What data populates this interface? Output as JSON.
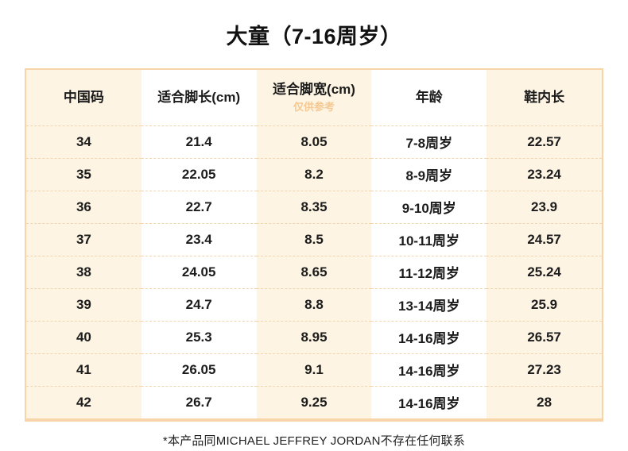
{
  "page": {
    "title": "大童（7-16周岁）",
    "footer_note": "*本产品同MICHAEL JEFFREY JORDAN不存在任何联系"
  },
  "table": {
    "columns": [
      {
        "label": "中国码",
        "sub": ""
      },
      {
        "label": "适合脚长(cm)",
        "sub": ""
      },
      {
        "label": "适合脚宽(cm)",
        "sub": "仅供参考"
      },
      {
        "label": "年龄",
        "sub": ""
      },
      {
        "label": "鞋内长",
        "sub": ""
      }
    ],
    "rows": [
      [
        "34",
        "21.4",
        "8.05",
        "7-8周岁",
        "22.57"
      ],
      [
        "35",
        "22.05",
        "8.2",
        "8-9周岁",
        "23.24"
      ],
      [
        "36",
        "22.7",
        "8.35",
        "9-10周岁",
        "23.9"
      ],
      [
        "37",
        "23.4",
        "8.5",
        "10-11周岁",
        "24.57"
      ],
      [
        "38",
        "24.05",
        "8.65",
        "11-12周岁",
        "25.24"
      ],
      [
        "39",
        "24.7",
        "8.8",
        "13-14周岁",
        "25.9"
      ],
      [
        "40",
        "25.3",
        "8.95",
        "14-16周岁",
        "26.57"
      ],
      [
        "41",
        "26.05",
        "9.1",
        "14-16周岁",
        "27.23"
      ],
      [
        "42",
        "26.7",
        "9.25",
        "14-16周岁",
        "28"
      ]
    ]
  },
  "colors": {
    "cream_column_bg": "#fdf4e3",
    "table_border": "#f7d5a9",
    "row_dash": "#f2d6b0",
    "hint_text": "#f5c993",
    "text": "#1c1c1c"
  }
}
